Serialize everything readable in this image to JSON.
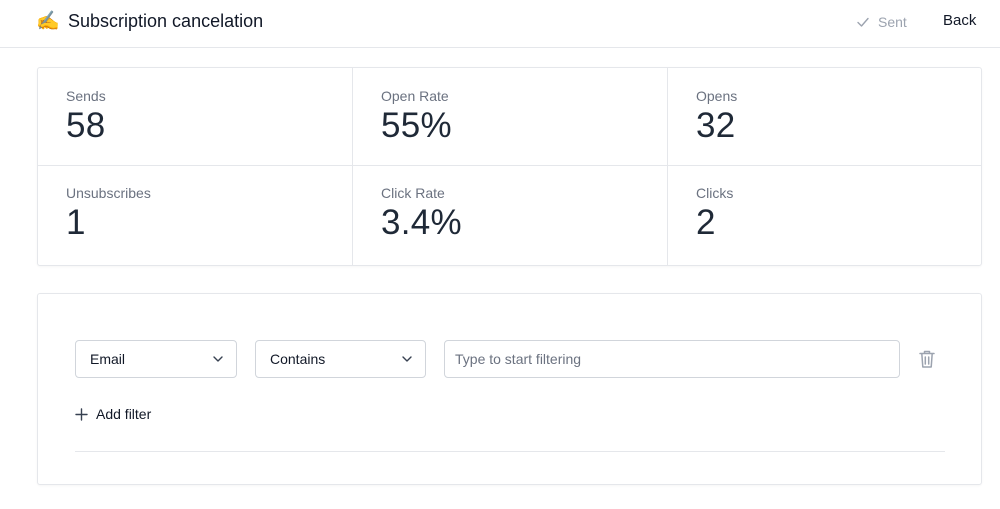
{
  "header": {
    "emoji": "✍️",
    "title": "Subscription cancelation",
    "status": "Sent",
    "back_label": "Back"
  },
  "stats": [
    {
      "label": "Sends",
      "value": "58"
    },
    {
      "label": "Open Rate",
      "value": "55%"
    },
    {
      "label": "Opens",
      "value": "32"
    },
    {
      "label": "Unsubscribes",
      "value": "1"
    },
    {
      "label": "Click Rate",
      "value": "3.4%"
    },
    {
      "label": "Clicks",
      "value": "2"
    }
  ],
  "filter": {
    "field": "Email",
    "operator": "Contains",
    "placeholder": "Type to start filtering",
    "add_label": "Add filter"
  },
  "colors": {
    "text": "#1f2937",
    "muted": "#6b7280",
    "border": "#e5e7eb",
    "status": "#9ca3af"
  }
}
